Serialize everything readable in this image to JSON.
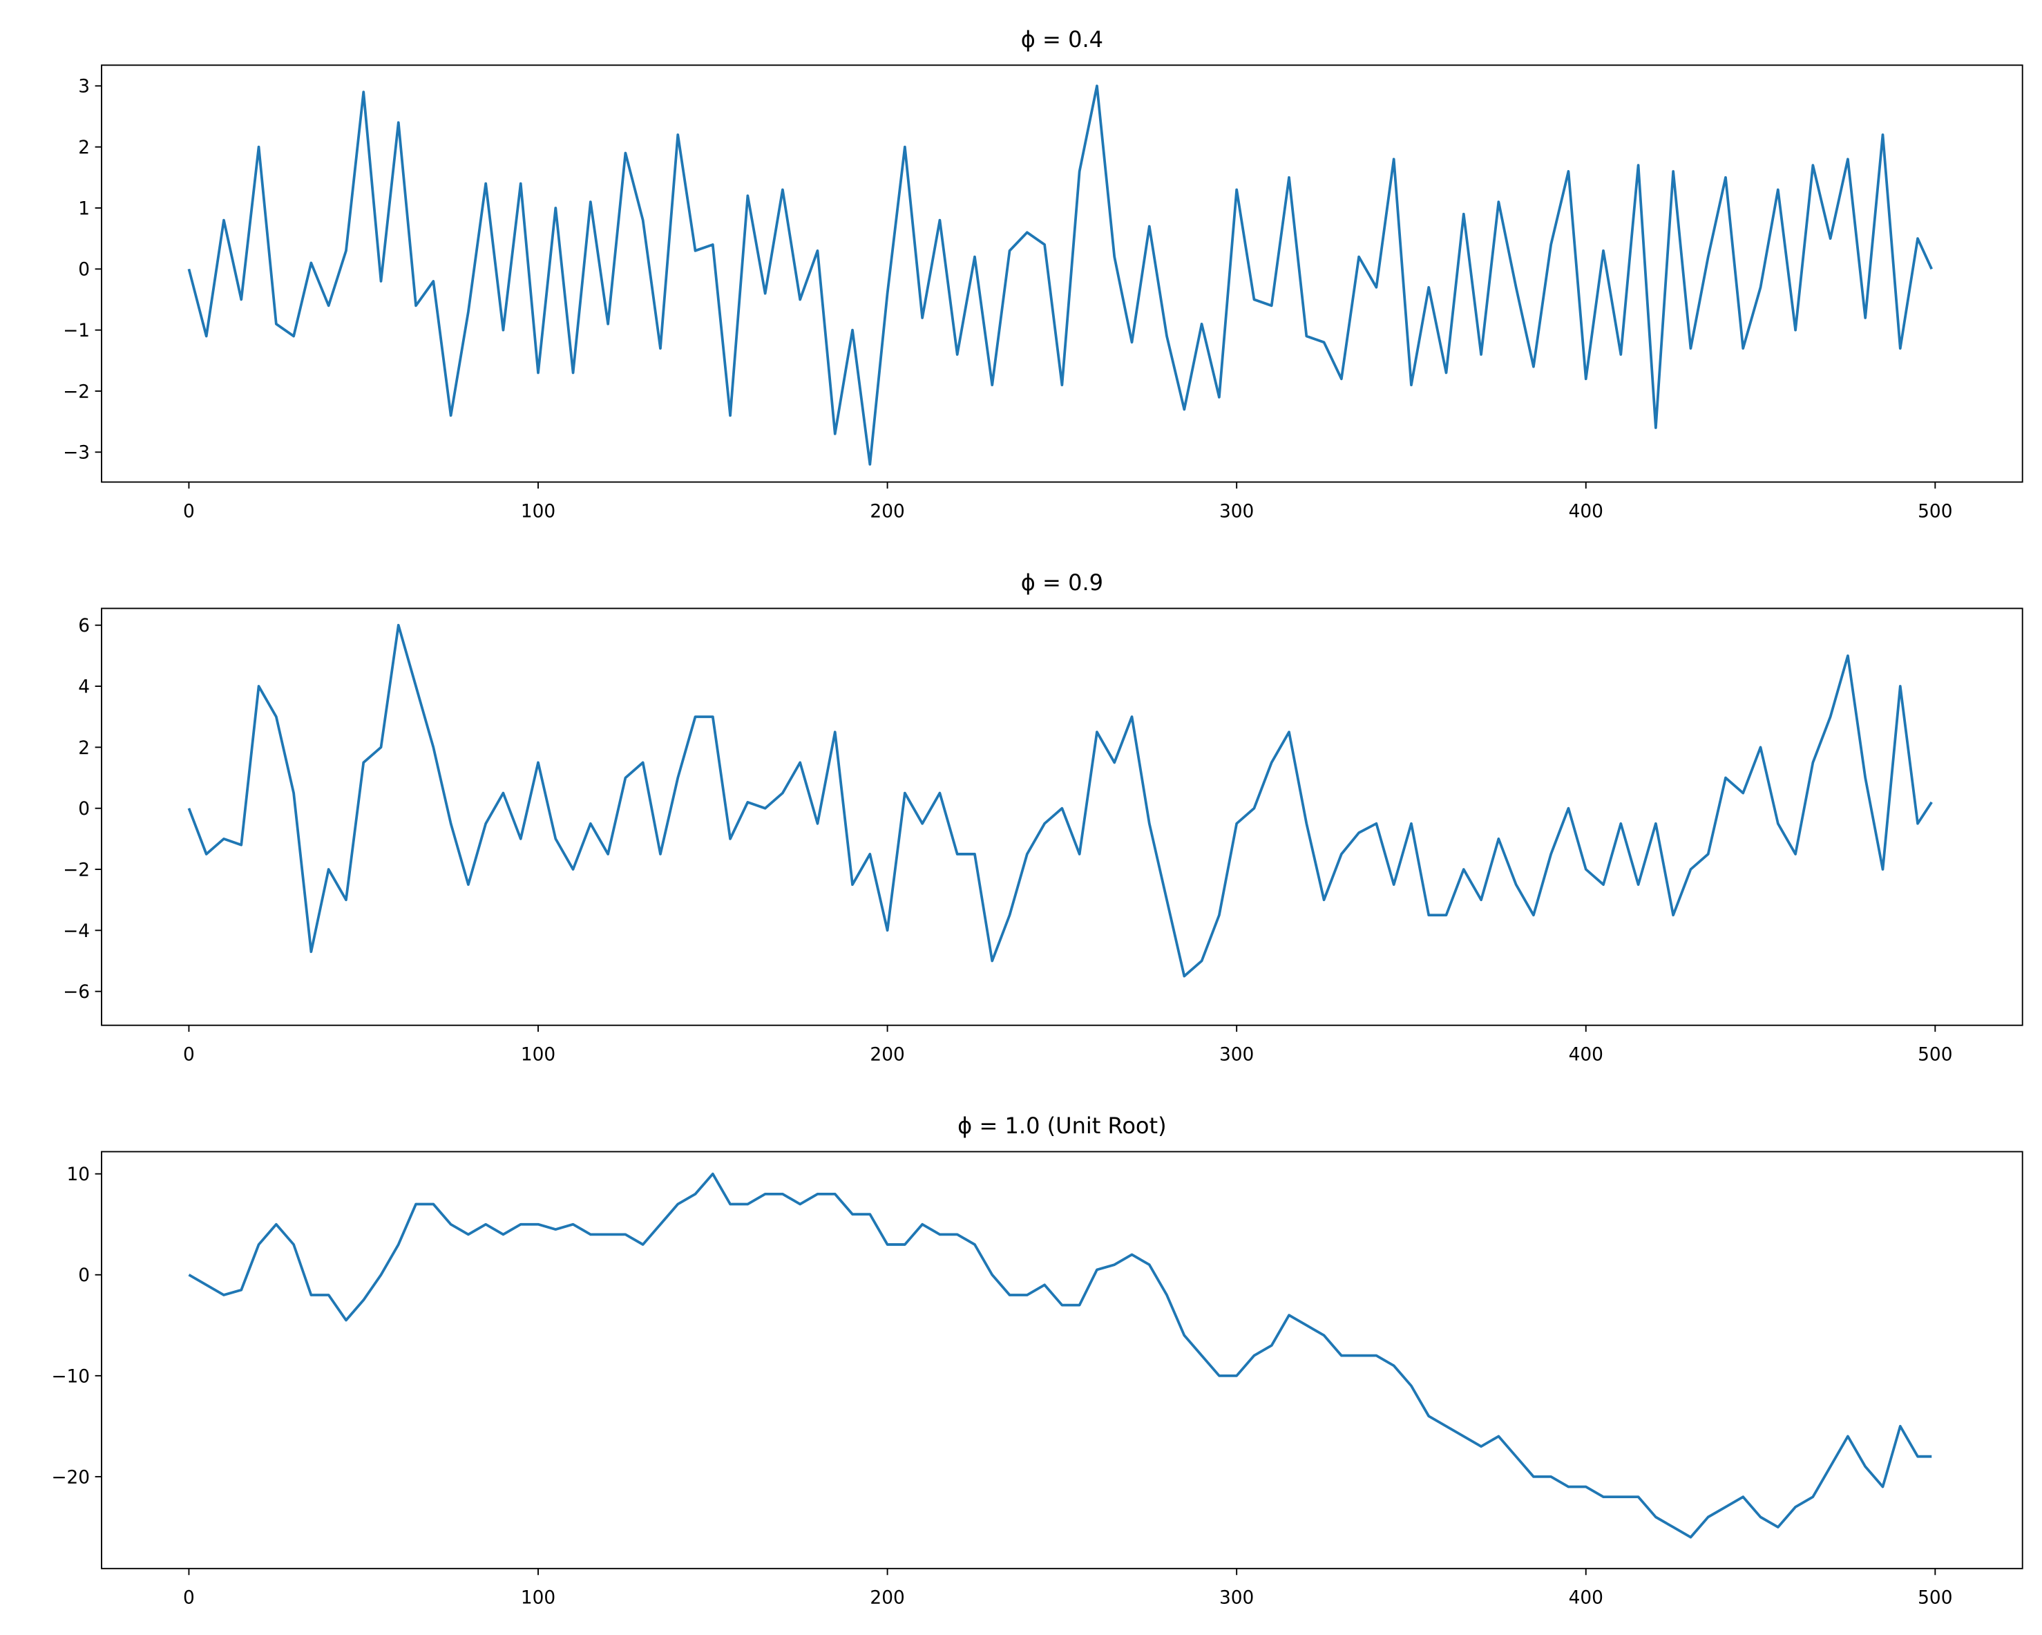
{
  "chart_data": [
    {
      "type": "line",
      "title": "ϕ = 0.4",
      "color": "#1f77b4",
      "x": [
        0,
        5,
        10,
        15,
        20,
        25,
        30,
        35,
        40,
        45,
        50,
        55,
        60,
        65,
        70,
        75,
        80,
        85,
        90,
        95,
        100,
        105,
        110,
        115,
        120,
        125,
        130,
        135,
        140,
        145,
        150,
        155,
        160,
        165,
        170,
        175,
        180,
        185,
        190,
        195,
        200,
        205,
        210,
        215,
        220,
        225,
        230,
        235,
        240,
        245,
        250,
        255,
        260,
        265,
        270,
        275,
        280,
        285,
        290,
        295,
        300,
        305,
        310,
        315,
        320,
        325,
        330,
        335,
        340,
        345,
        350,
        355,
        360,
        365,
        370,
        375,
        380,
        385,
        390,
        395,
        400,
        405,
        410,
        415,
        420,
        425,
        430,
        435,
        440,
        445,
        450,
        455,
        460,
        465,
        470,
        475,
        480,
        485,
        490,
        495,
        499
      ],
      "values": [
        0,
        -1.1,
        0.8,
        -0.5,
        2.0,
        -0.9,
        -1.1,
        0.1,
        -0.6,
        0.3,
        2.9,
        -0.2,
        2.4,
        -0.6,
        -0.2,
        -2.4,
        -0.7,
        1.4,
        -1.0,
        1.4,
        -1.7,
        1.0,
        -1.7,
        1.1,
        -0.9,
        1.9,
        0.8,
        -1.3,
        2.2,
        0.3,
        0.4,
        -2.4,
        1.2,
        -0.4,
        1.3,
        -0.5,
        0.3,
        -2.7,
        -1.0,
        -3.2,
        -0.4,
        2.0,
        -0.8,
        0.8,
        -1.4,
        0.2,
        -1.9,
        0.3,
        0.6,
        0.4,
        -1.9,
        1.6,
        3.0,
        0.2,
        -1.2,
        0.7,
        -1.1,
        -2.3,
        -0.9,
        -2.1,
        1.3,
        -0.5,
        -0.6,
        1.5,
        -1.1,
        -1.2,
        -1.8,
        0.2,
        -0.3,
        1.8,
        -1.9,
        -0.3,
        -1.7,
        0.9,
        -1.4,
        1.1,
        -0.3,
        -1.6,
        0.4,
        1.6,
        -1.8,
        0.3,
        -1.4,
        1.7,
        -2.6,
        1.6,
        -1.3,
        0.2,
        1.5,
        -1.3,
        -0.3,
        1.3,
        -1.0,
        1.7,
        0.5,
        1.8,
        -0.8,
        2.2,
        -1.3,
        0.5,
        0
      ],
      "xlim": [
        -25,
        525
      ],
      "xticks": [
        0,
        100,
        200,
        300,
        400,
        500
      ],
      "ylim": [
        -3.49,
        3.34
      ],
      "yticks": [
        {
          "value": -3,
          "label": "−3"
        },
        {
          "value": -2,
          "label": "−2"
        },
        {
          "value": -1,
          "label": "−1"
        },
        0,
        1,
        2,
        3
      ]
    },
    {
      "type": "line",
      "title": "ϕ = 0.9",
      "color": "#1f77b4",
      "x": [
        0,
        5,
        10,
        15,
        20,
        25,
        30,
        35,
        40,
        45,
        50,
        55,
        60,
        65,
        70,
        75,
        80,
        85,
        90,
        95,
        100,
        105,
        110,
        115,
        120,
        125,
        130,
        135,
        140,
        145,
        150,
        155,
        160,
        165,
        170,
        175,
        180,
        185,
        190,
        195,
        200,
        205,
        210,
        215,
        220,
        225,
        230,
        235,
        240,
        245,
        250,
        255,
        260,
        265,
        270,
        275,
        280,
        285,
        290,
        295,
        300,
        305,
        310,
        315,
        320,
        325,
        330,
        335,
        340,
        345,
        350,
        355,
        360,
        365,
        370,
        375,
        380,
        385,
        390,
        395,
        400,
        405,
        410,
        415,
        420,
        425,
        430,
        435,
        440,
        445,
        450,
        455,
        460,
        465,
        470,
        475,
        480,
        485,
        490,
        495,
        499
      ],
      "values": [
        0,
        -1.5,
        -1.0,
        -1.2,
        4.0,
        3.0,
        0.5,
        -4.7,
        -2.0,
        -3.0,
        1.5,
        2.0,
        6.0,
        4.0,
        2.0,
        -0.5,
        -2.5,
        -0.5,
        0.5,
        -1.0,
        1.5,
        -1.0,
        -2.0,
        -0.5,
        -1.5,
        1.0,
        1.5,
        -1.5,
        1.0,
        3.0,
        3.0,
        -1.0,
        0.2,
        0.0,
        0.5,
        1.5,
        -0.5,
        2.5,
        -2.5,
        -1.5,
        -4.0,
        0.5,
        -0.5,
        0.5,
        -1.5,
        -1.5,
        -5.0,
        -3.5,
        -1.5,
        -0.5,
        0.0,
        -1.5,
        2.5,
        1.5,
        3.0,
        -0.5,
        -3.0,
        -5.5,
        -5.0,
        -3.5,
        -0.5,
        0.0,
        1.5,
        2.5,
        -0.5,
        -3.0,
        -1.5,
        -0.8,
        -0.5,
        -2.5,
        -0.5,
        -3.5,
        -3.5,
        -2.0,
        -3.0,
        -1.0,
        -2.5,
        -3.5,
        -1.5,
        0.0,
        -2.0,
        -2.5,
        -0.5,
        -2.5,
        -0.5,
        -3.5,
        -2.0,
        -1.5,
        1.0,
        0.5,
        2.0,
        -0.5,
        -1.5,
        1.5,
        3.0,
        5.0,
        1.0,
        -2.0,
        4.0,
        -0.5,
        0.2
      ],
      "xlim": [
        -25,
        525
      ],
      "xticks": [
        0,
        100,
        200,
        300,
        400,
        500
      ],
      "ylim": [
        -7.11,
        6.55
      ],
      "yticks": [
        {
          "value": -6,
          "label": "−6"
        },
        {
          "value": -4,
          "label": "−4"
        },
        {
          "value": -2,
          "label": "−2"
        },
        0,
        2,
        4,
        6
      ]
    },
    {
      "type": "line",
      "title": "ϕ = 1.0 (Unit Root)",
      "color": "#1f77b4",
      "x": [
        0,
        5,
        10,
        15,
        20,
        25,
        30,
        35,
        40,
        45,
        50,
        55,
        60,
        65,
        70,
        75,
        80,
        85,
        90,
        95,
        100,
        105,
        110,
        115,
        120,
        125,
        130,
        135,
        140,
        145,
        150,
        155,
        160,
        165,
        170,
        175,
        180,
        185,
        190,
        195,
        200,
        205,
        210,
        215,
        220,
        225,
        230,
        235,
        240,
        245,
        250,
        255,
        260,
        265,
        270,
        275,
        280,
        285,
        290,
        295,
        300,
        305,
        310,
        315,
        320,
        325,
        330,
        335,
        340,
        345,
        350,
        355,
        360,
        365,
        370,
        375,
        380,
        385,
        390,
        395,
        400,
        405,
        410,
        415,
        420,
        425,
        430,
        435,
        440,
        445,
        450,
        455,
        460,
        465,
        470,
        475,
        480,
        485,
        490,
        495,
        499
      ],
      "values": [
        0,
        -1,
        -2,
        -1.5,
        3,
        5,
        3,
        -2,
        -2,
        -4.5,
        -2.5,
        0,
        3,
        7,
        7,
        5,
        4,
        5,
        4,
        5,
        5,
        4.5,
        5,
        4,
        4,
        4,
        3,
        5,
        7,
        8,
        10,
        7,
        7,
        8,
        8,
        7,
        8,
        8,
        6,
        6,
        3,
        3,
        5,
        4,
        4,
        3,
        0,
        -2,
        -2,
        -1,
        -3,
        -3,
        0.5,
        1,
        2,
        1,
        -2,
        -6,
        -8,
        -10,
        -10,
        -8,
        -7,
        -4,
        -5,
        -6,
        -8,
        -8,
        -8,
        -9,
        -11,
        -14,
        -15,
        -16,
        -17,
        -16,
        -18,
        -20,
        -20,
        -21,
        -21,
        -22,
        -22,
        -22,
        -24,
        -25,
        -26,
        -24,
        -23,
        -22,
        -24,
        -25,
        -23,
        -22,
        -19,
        -16,
        -19,
        -21,
        -15,
        -18,
        -18
      ],
      "xlim": [
        -25,
        525
      ],
      "xticks": [
        0,
        100,
        200,
        300,
        400,
        500
      ],
      "ylim": [
        -29.1,
        12.2
      ],
      "yticks": [
        {
          "value": -20,
          "label": "−20"
        },
        {
          "value": -10,
          "label": "−10"
        },
        0,
        10
      ]
    }
  ]
}
